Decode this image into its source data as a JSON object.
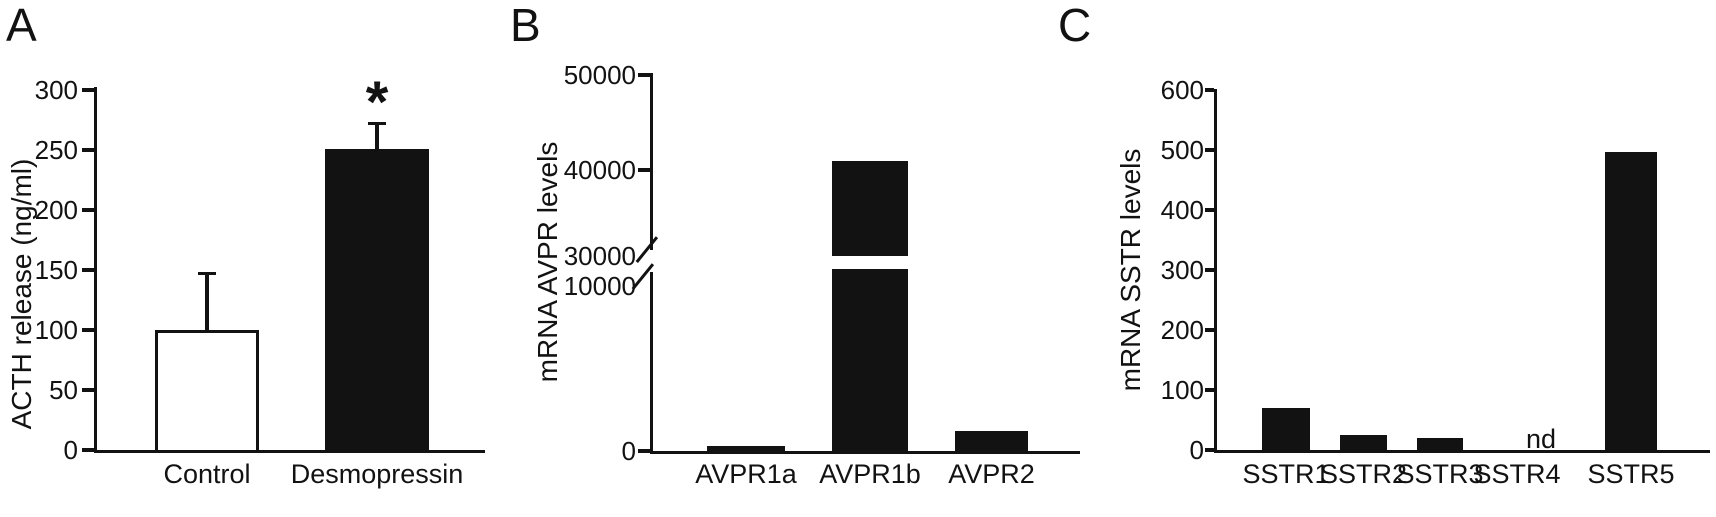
{
  "figure": {
    "background_color": "#ffffff",
    "ink_color": "#121212",
    "panel_letters": [
      "A",
      "B",
      "C"
    ]
  },
  "chart_data": [
    {
      "panel": "A",
      "type": "bar",
      "title": "",
      "xlabel": "",
      "ylabel": "ACTH release (ng/ml)",
      "categories": [
        "Control",
        "Desmopressin"
      ],
      "values": [
        100,
        251
      ],
      "error_upper": [
        47,
        21
      ],
      "bar_fills": [
        "#ffffff",
        "#121212"
      ],
      "significance": [
        null,
        "*"
      ],
      "ylim": [
        0,
        300
      ],
      "yticks": [
        0,
        50,
        100,
        150,
        200,
        250,
        300
      ],
      "grid": false,
      "legend": null
    },
    {
      "panel": "B",
      "type": "bar",
      "title": "",
      "xlabel": "",
      "ylabel": "mRNA AVPR levels",
      "categories": [
        "AVPR1a",
        "AVPR1b",
        "AVPR2"
      ],
      "values": [
        300,
        41000,
        1200
      ],
      "error_upper": null,
      "bar_fills": [
        "#121212",
        "#121212",
        "#121212"
      ],
      "significance": null,
      "ylim": [
        0,
        50000
      ],
      "yticks": [
        0,
        10000,
        30000,
        40000,
        50000
      ],
      "axis_break": {
        "gap_from": 10000,
        "gap_to": 30000
      },
      "grid": false,
      "legend": null
    },
    {
      "panel": "C",
      "type": "bar",
      "title": "",
      "xlabel": "",
      "ylabel": "mRNA SSTR levels",
      "categories": [
        "SSTR1",
        "SSTR2",
        "SSTR3",
        "SSTR4",
        "SSTR5"
      ],
      "values": [
        70,
        25,
        20,
        null,
        497
      ],
      "not_detected_label": "nd",
      "error_upper": null,
      "bar_fills": [
        "#121212",
        "#121212",
        "#121212",
        "#121212",
        "#121212"
      ],
      "significance": null,
      "ylim": [
        0,
        600
      ],
      "yticks": [
        0,
        100,
        200,
        300,
        400,
        500,
        600
      ],
      "grid": false,
      "legend": null
    }
  ]
}
